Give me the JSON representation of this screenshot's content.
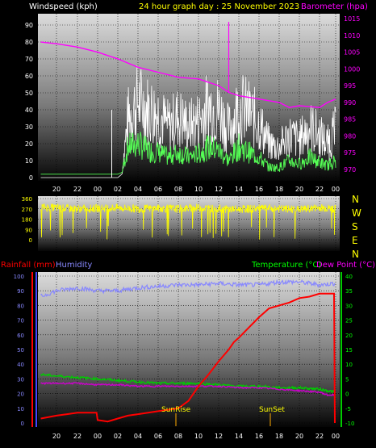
{
  "header": {
    "windspeed_label": "Windspeed (kph)",
    "title": "24 hour graph day : 25 November 2023",
    "barometer_label": "Barometer (hpa)"
  },
  "colors": {
    "wind_gust": "#ffffff",
    "wind_avg": "#55ff55",
    "barometer": "#ff00ff",
    "direction": "#ffff00",
    "rainfall": "#ff0000",
    "humidity": "#8888ff",
    "temperature": "#00cc00",
    "dewpoint": "#cc00cc",
    "sun_marker": "#ffaa00"
  },
  "wind_panel": {
    "x_ticks": [
      "20",
      "22",
      "00",
      "02",
      "04",
      "06",
      "08",
      "10",
      "12",
      "14",
      "16",
      "18",
      "20",
      "22",
      "00"
    ],
    "y_left_ticks": [
      "0",
      "10",
      "20",
      "30",
      "40",
      "50",
      "60",
      "70",
      "80",
      "90"
    ],
    "y_right_ticks": [
      "970",
      "975",
      "980",
      "985",
      "990",
      "995",
      "1000",
      "1005",
      "1010",
      "1015"
    ]
  },
  "direction_panel": {
    "y_ticks": [
      "0",
      "90",
      "180",
      "270",
      "360"
    ],
    "compass": [
      "N",
      "W",
      "S",
      "E",
      "N"
    ]
  },
  "climate_panel": {
    "rainfall_label": "Rainfall (mm)",
    "humidity_label": "Humidity",
    "temperature_label": "Temperature (°C)",
    "dewpoint_label": "Dew Point (°C)",
    "sunrise_label": "SunRise",
    "sunset_label": "SunSet",
    "x_ticks": [
      "20",
      "22",
      "00",
      "02",
      "04",
      "06",
      "08",
      "10",
      "12",
      "14",
      "16",
      "18",
      "20",
      "22",
      "00"
    ],
    "y_left_ticks": [
      "0",
      "10",
      "20",
      "30",
      "40",
      "50",
      "60",
      "70",
      "80",
      "90",
      "100"
    ],
    "y_right_ticks": [
      "-10",
      "-5",
      "0",
      "5",
      "10",
      "15",
      "20",
      "25",
      "30",
      "35",
      "40"
    ]
  },
  "chart_data": [
    {
      "type": "line",
      "title": "24 hour graph day : 25 November 2023",
      "x_ticks": [
        "20",
        "22",
        "00",
        "02",
        "04",
        "06",
        "08",
        "10",
        "12",
        "14",
        "16",
        "18",
        "20",
        "22",
        "00"
      ],
      "xlim_hours": [
        18.5,
        48
      ],
      "ylabel": "Windspeed (kph)",
      "ylim": [
        0,
        100
      ],
      "y2label": "Barometer (hpa)",
      "y2lim": [
        967,
        1019
      ],
      "series": [
        {
          "name": "Barometer (hpa)",
          "axis": "right",
          "x": [
            18.5,
            20,
            22,
            24,
            26,
            28,
            30,
            32,
            34,
            36,
            37,
            38,
            40,
            42,
            43,
            44,
            46,
            47,
            48
          ],
          "values": [
            1008,
            1007.5,
            1006.5,
            1005,
            1003,
            1000.5,
            999,
            997.5,
            997,
            995,
            993,
            992,
            991,
            990,
            988.5,
            989,
            988.5,
            990,
            991
          ]
        },
        {
          "x": [
            18.5,
            20,
            22,
            24,
            25.5,
            26,
            26.4,
            27,
            28,
            29,
            30,
            31,
            32,
            33,
            34,
            35,
            36,
            37,
            38,
            39,
            40,
            41,
            42,
            43,
            44,
            45,
            46,
            47,
            48
          ],
          "values": [
            0,
            0,
            0,
            0,
            0,
            0,
            2,
            35,
            45,
            40,
            38,
            30,
            36,
            30,
            34,
            42,
            40,
            28,
            42,
            38,
            32,
            20,
            18,
            25,
            22,
            30,
            25,
            20,
            28
          ]
        },
        {
          "x": [
            18.5,
            20,
            22,
            24,
            25.5,
            26,
            26.4,
            27,
            28,
            29,
            30,
            31,
            32,
            33,
            34,
            35,
            36,
            37,
            38,
            39,
            40,
            41,
            42,
            43,
            44,
            45,
            46,
            47,
            48
          ],
          "values": [
            2,
            2,
            2,
            2,
            2,
            2,
            3,
            18,
            20,
            16,
            15,
            12,
            15,
            12,
            14,
            18,
            16,
            10,
            18,
            15,
            12,
            6,
            6,
            10,
            8,
            12,
            9,
            7,
            10
          ]
        }
      ]
    },
    {
      "type": "scatter",
      "ylim": [
        0,
        360
      ],
      "y_ticks": [
        "0",
        "90",
        "180",
        "270",
        "360"
      ],
      "series": [
        {
          "x": [
            18.5,
            20,
            22,
            24,
            26,
            28,
            30,
            32,
            34,
            36,
            38,
            40,
            42,
            44,
            46,
            48
          ],
          "values": [
            285,
            280,
            270,
            275,
            280,
            270,
            275,
            270,
            280,
            270,
            265,
            275,
            270,
            265,
            280,
            270
          ]
        }
      ]
    },
    {
      "type": "line",
      "x_ticks": [
        "20",
        "22",
        "00",
        "02",
        "04",
        "06",
        "08",
        "10",
        "12",
        "14",
        "16",
        "18",
        "20",
        "22",
        "00"
      ],
      "xlim_hours": [
        18.5,
        48
      ],
      "ylabel": "Rainfall (mm)",
      "ylim": [
        0,
        100
      ],
      "y2label": "Temperature (°C)",
      "y2lim": [
        -10,
        40
      ],
      "series": [
        {
          "name": "Humidity",
          "axis": "left",
          "x": [
            18.5,
            20,
            22,
            24,
            26,
            28,
            30,
            32,
            34,
            36,
            38,
            40,
            42,
            44,
            46,
            48
          ],
          "values": [
            86,
            90,
            92,
            90,
            90,
            92,
            93,
            94,
            94,
            95,
            94,
            94,
            96,
            96,
            94,
            95
          ]
        },
        {
          "name": "Rainfall (mm)",
          "axis": "left",
          "x": [
            18.5,
            20,
            21,
            22,
            23.9,
            24,
            25,
            26,
            27,
            28,
            29,
            30,
            31,
            32,
            33,
            34,
            35,
            36,
            37,
            37.5,
            38,
            39,
            40,
            41,
            42,
            43,
            44,
            45,
            46,
            47,
            47.8,
            47.9
          ],
          "values": [
            3,
            5,
            6,
            7,
            7,
            2,
            1,
            3,
            5,
            6,
            7,
            8,
            9,
            10,
            15,
            25,
            33,
            42,
            50,
            55,
            58,
            65,
            72,
            78,
            80,
            82,
            85,
            86,
            88,
            88,
            88,
            0
          ]
        },
        {
          "name": "Temperature (°C)",
          "axis": "right",
          "x": [
            18.5,
            20,
            22,
            24,
            26,
            28,
            30,
            32,
            34,
            36,
            38,
            40,
            42,
            44,
            46,
            47,
            48
          ],
          "values": [
            6.5,
            6,
            5.5,
            5,
            4.5,
            4,
            3.5,
            3.5,
            3.5,
            3,
            2.5,
            2.5,
            2,
            2,
            1.5,
            1,
            0.5
          ]
        },
        {
          "name": "Dew Point (°C)",
          "axis": "right",
          "x": [
            18.5,
            20,
            22,
            24,
            26,
            28,
            30,
            32,
            34,
            36,
            38,
            40,
            42,
            44,
            46,
            47,
            48
          ],
          "values": [
            3.5,
            3.5,
            3.5,
            3,
            3,
            2.5,
            2.5,
            2.5,
            2.5,
            2.5,
            2,
            2,
            1.5,
            1,
            0.5,
            -0.5,
            -0.5
          ]
        }
      ]
    }
  ]
}
